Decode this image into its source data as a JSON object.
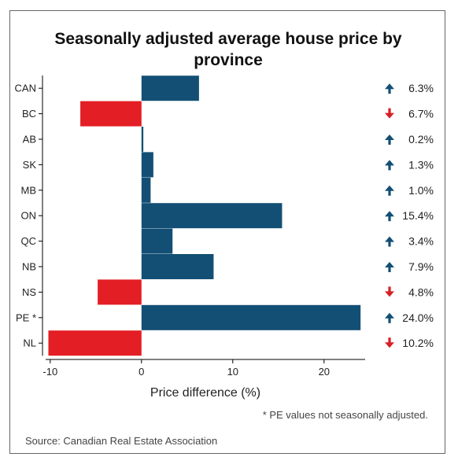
{
  "chart_data": {
    "type": "bar",
    "orientation": "horizontal",
    "title": "Seasonally adjusted average house price by province",
    "xlabel": "Price difference (%)",
    "ylabel": "",
    "xlim": [
      -10.5,
      24.5
    ],
    "xticks": [
      -10,
      0,
      10,
      20
    ],
    "categories": [
      "CAN",
      "BC",
      "AB",
      "SK",
      "MB",
      "ON",
      "QC",
      "NB",
      "NS",
      "PE *",
      "NL"
    ],
    "values": [
      6.3,
      -6.7,
      0.2,
      1.3,
      1.0,
      15.4,
      3.4,
      7.9,
      -4.8,
      24.0,
      -10.2
    ],
    "value_labels": [
      "6.3%",
      "6.7%",
      "0.2%",
      "1.3%",
      "1.0%",
      "15.4%",
      "3.4%",
      "7.9%",
      "4.8%",
      "24.0%",
      "10.2%"
    ],
    "colors": {
      "positive": "#134f74",
      "negative": "#e31e24",
      "up_arrow": "#134f74",
      "down_arrow": "#d62027"
    },
    "grid": false,
    "legend": "none"
  },
  "footnote": "* PE values not seasonally adjusted.",
  "source": "Source: Canadian Real Estate Association"
}
